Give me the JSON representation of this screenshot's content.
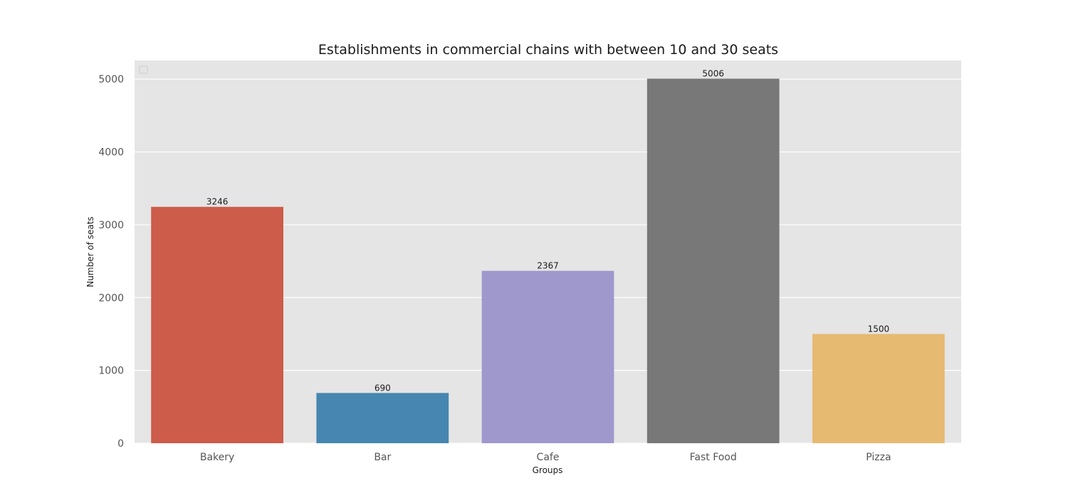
{
  "chart_data": {
    "type": "bar",
    "title": "Establishments in commercial chains with between 10 and 30 seats",
    "xlabel": "Groups",
    "ylabel": "Number of seats",
    "categories": [
      "Bakery",
      "Bar",
      "Cafe",
      "Fast Food",
      "Pizza"
    ],
    "values": [
      3246,
      690,
      2367,
      5006,
      1500
    ],
    "value_labels": [
      "3246",
      "690",
      "2367",
      "5006",
      "1500"
    ],
    "colors": [
      "#cd5c4a",
      "#4686b0",
      "#9e98cc",
      "#787878",
      "#e6ba71"
    ],
    "ylim": [
      0,
      5256
    ],
    "yticks": [
      0,
      1000,
      2000,
      3000,
      4000,
      5000
    ],
    "ytick_labels": [
      "0",
      "1000",
      "2000",
      "3000",
      "4000",
      "5000"
    ],
    "grid": true,
    "legend": "top-left, empty",
    "background_color": "#e5e5e5",
    "grid_color": "#ffffff"
  }
}
